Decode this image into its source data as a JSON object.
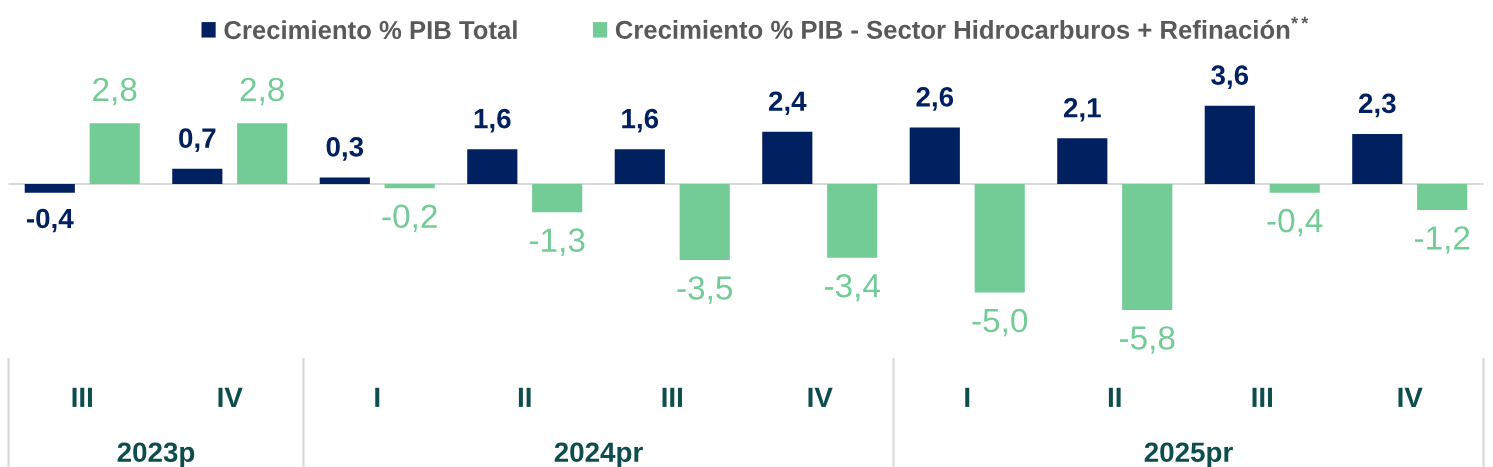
{
  "chart_data": {
    "type": "bar",
    "categories": [
      "III",
      "IV",
      "I",
      "II",
      "III",
      "IV",
      "I",
      "II",
      "III",
      "IV"
    ],
    "series": [
      {
        "name": "Crecimiento % PIB Total",
        "color": "#002060",
        "values": [
          -0.4,
          0.7,
          0.3,
          1.6,
          1.6,
          2.4,
          2.6,
          2.1,
          3.6,
          2.3
        ],
        "value_labels": [
          "-0,4",
          "0,7",
          "0,3",
          "1,6",
          "1,6",
          "2,4",
          "2,6",
          "2,1",
          "3,6",
          "2,3"
        ]
      },
      {
        "name": "Crecimiento % PIB - Sector Hidrocarburos + Refinación$^{**}$",
        "color": "#73cb96",
        "values": [
          2.8,
          2.8,
          -0.2,
          -1.3,
          -3.5,
          -3.4,
          -5.0,
          -5.8,
          -0.4,
          -1.2
        ],
        "value_labels": [
          "2,8",
          "2,8",
          "-0,2",
          "-1,3",
          "-3,5",
          "-3,4",
          "-5,0",
          "-5,8",
          "-0,4",
          "-1,2"
        ]
      }
    ],
    "annotations": [
      "2023p",
      "2024pr",
      "2025pr"
    ],
    "legend": "top"
  }
}
